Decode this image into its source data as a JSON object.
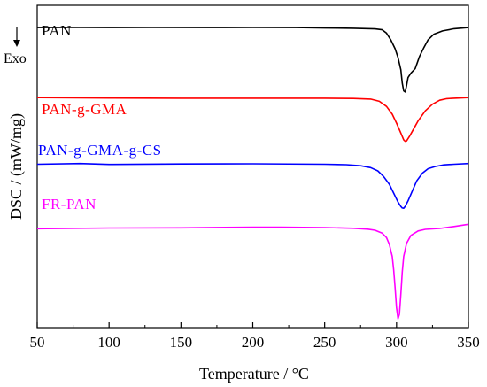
{
  "chart_data": {
    "type": "line",
    "xlabel": "Temperature / °C",
    "ylabel": "DSC / (mW/mg)",
    "xlim": [
      50,
      350
    ],
    "x_ticks": [
      "50",
      "100",
      "150",
      "200",
      "250",
      "300",
      "350"
    ],
    "y_ticks_shown": false,
    "grid": false,
    "exo_annotation": "Exo",
    "exo_arrow_direction": "down",
    "colors": {
      "PAN": "#000000",
      "PAN-g-GMA": "#ff0000",
      "PAN-g-GMA-g-CS": "#0000ff",
      "FR-PAN": "#ff00ff"
    },
    "series": [
      {
        "name": "PAN",
        "color": "#000000",
        "x": [
          50,
          80,
          100,
          130,
          170,
          200,
          230,
          250,
          270,
          285,
          290,
          293,
          296,
          299,
          301,
          303,
          304,
          305,
          306,
          307,
          308,
          310,
          313,
          316,
          319,
          322,
          326,
          332,
          340,
          350
        ],
        "y": [
          0.0,
          0.01,
          0.0,
          0.01,
          0.0,
          0.01,
          0.0,
          -0.02,
          -0.03,
          -0.06,
          -0.1,
          -0.25,
          -0.55,
          -0.95,
          -1.35,
          -1.9,
          -2.5,
          -2.85,
          -2.9,
          -2.6,
          -2.25,
          -2.05,
          -1.85,
          -1.3,
          -0.9,
          -0.55,
          -0.3,
          -0.15,
          -0.05,
          0.0
        ]
      },
      {
        "name": "PAN-g-GMA",
        "color": "#ff0000",
        "x": [
          50,
          100,
          150,
          200,
          250,
          270,
          282,
          288,
          293,
          297,
          300,
          303,
          305,
          306,
          307,
          309,
          312,
          315,
          320,
          325,
          330,
          335,
          340,
          350
        ],
        "y": [
          -3.15,
          -3.17,
          -3.18,
          -3.18,
          -3.18,
          -3.19,
          -3.22,
          -3.32,
          -3.55,
          -3.9,
          -4.3,
          -4.75,
          -5.05,
          -5.12,
          -5.1,
          -4.9,
          -4.55,
          -4.2,
          -3.75,
          -3.45,
          -3.27,
          -3.2,
          -3.18,
          -3.15
        ]
      },
      {
        "name": "PAN-g-GMA-g-CS",
        "color": "#0000ff",
        "x": [
          50,
          80,
          100,
          150,
          200,
          250,
          265,
          275,
          282,
          287,
          291,
          295,
          298,
          301,
          303,
          304,
          305,
          306,
          308,
          311,
          314,
          318,
          322,
          327,
          333,
          340,
          350
        ],
        "y": [
          -6.15,
          -6.12,
          -6.16,
          -6.14,
          -6.13,
          -6.15,
          -6.17,
          -6.22,
          -6.3,
          -6.45,
          -6.7,
          -7.05,
          -7.45,
          -7.85,
          -8.05,
          -8.12,
          -8.13,
          -8.05,
          -7.8,
          -7.35,
          -6.9,
          -6.55,
          -6.35,
          -6.25,
          -6.18,
          -6.15,
          -6.12
        ]
      },
      {
        "name": "FR-PAN",
        "color": "#ff00ff",
        "x": [
          50,
          100,
          150,
          200,
          220,
          250,
          270,
          280,
          285,
          290,
          293,
          295,
          297,
          298,
          299,
          300,
          301,
          302,
          303,
          304,
          305,
          307,
          310,
          315,
          320,
          325,
          330,
          340,
          350
        ],
        "y": [
          -9.05,
          -9.02,
          -9.01,
          -8.98,
          -8.98,
          -9.0,
          -9.03,
          -9.07,
          -9.12,
          -9.25,
          -9.45,
          -9.75,
          -10.3,
          -10.9,
          -11.7,
          -12.6,
          -13.1,
          -12.9,
          -12.0,
          -11.0,
          -10.3,
          -9.7,
          -9.35,
          -9.15,
          -9.08,
          -9.06,
          -9.04,
          -8.95,
          -8.85
        ]
      }
    ],
    "series_labels": [
      "PAN",
      "PAN-g-GMA",
      "PAN-g-GMA-g-CS",
      "FR-PAN"
    ]
  }
}
